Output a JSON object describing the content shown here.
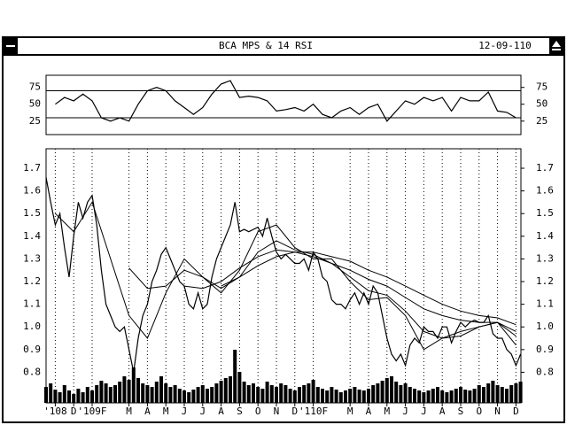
{
  "window": {
    "title": "BCA MPS & 14 RSI",
    "date": "12-09-110"
  },
  "chart_data": [
    {
      "type": "line",
      "ylim": [
        5,
        93
      ],
      "yticks": [
        25,
        50,
        75
      ],
      "levels": [
        70,
        30
      ],
      "color": "#000000",
      "xlim": [
        -0.5,
        25.27
      ],
      "x": [
        0,
        0.5,
        1,
        1.5,
        2,
        2.5,
        3,
        3.5,
        4,
        4.5,
        5,
        5.5,
        6,
        6.5,
        7,
        7.5,
        8,
        8.5,
        9,
        9.5,
        10,
        10.5,
        11,
        11.5,
        12,
        12.5,
        13,
        13.5,
        14,
        14.5,
        15,
        15.5,
        16,
        16.5,
        17,
        17.5,
        18,
        18.5,
        19,
        19.5,
        20,
        20.5,
        21,
        21.5,
        22,
        22.5,
        23,
        23.5,
        24,
        24.5,
        25
      ],
      "values": [
        50,
        60,
        55,
        65,
        55,
        30,
        25,
        30,
        25,
        50,
        70,
        75,
        70,
        55,
        45,
        35,
        45,
        65,
        80,
        85,
        60,
        62,
        60,
        55,
        40,
        42,
        45,
        40,
        50,
        35,
        30,
        40,
        45,
        35,
        45,
        50,
        25,
        40,
        55,
        50,
        60,
        55,
        60,
        40,
        60,
        55,
        55,
        68,
        40,
        38,
        30
      ]
    },
    {
      "type": "line",
      "ylim": [
        0.665,
        1.786
      ],
      "xlim": [
        -0.5,
        25.27
      ],
      "color": "#000000",
      "yticks": [
        1.7,
        1.6,
        1.5,
        1.4,
        1.3,
        1.2,
        1.1,
        {
          "value": 1,
          "label": "1.0"
        },
        0.9,
        0.8
      ],
      "xticks": [
        {
          "value": 0,
          "label": "'108"
        },
        {
          "value": 1,
          "label": "D"
        },
        {
          "value": 2,
          "label": "'109F"
        },
        {
          "value": 4,
          "label": "M"
        },
        {
          "value": 5,
          "label": "A"
        },
        {
          "value": 6,
          "label": "M"
        },
        {
          "value": 7,
          "label": "J"
        },
        {
          "value": 8,
          "label": "J"
        },
        {
          "value": 9,
          "label": "A"
        },
        {
          "value": 10,
          "label": "S"
        },
        {
          "value": 11,
          "label": "O"
        },
        {
          "value": 12,
          "label": "N"
        },
        {
          "value": 13,
          "label": "D"
        },
        {
          "value": 14,
          "label": "'110F"
        },
        {
          "value": 16,
          "label": "M"
        },
        {
          "value": 17,
          "label": "A"
        },
        {
          "value": 18,
          "label": "M"
        },
        {
          "value": 19,
          "label": "J"
        },
        {
          "value": 20,
          "label": "J"
        },
        {
          "value": 21,
          "label": "A"
        },
        {
          "value": 22,
          "label": "S"
        },
        {
          "value": 23,
          "label": "O"
        },
        {
          "value": 24,
          "label": "N"
        },
        {
          "value": 25,
          "label": "D"
        }
      ],
      "grid": true,
      "x": [
        -0.5,
        -0.25,
        0,
        0.25,
        0.5,
        0.75,
        1,
        1.25,
        1.5,
        1.75,
        2,
        2.25,
        2.5,
        2.75,
        3,
        3.25,
        3.5,
        3.75,
        4,
        4.25,
        4.5,
        4.75,
        5,
        5.25,
        5.5,
        5.75,
        6,
        6.25,
        6.5,
        6.75,
        7,
        7.25,
        7.5,
        7.75,
        8,
        8.25,
        8.5,
        8.75,
        9,
        9.25,
        9.5,
        9.75,
        10,
        10.25,
        10.5,
        10.75,
        11,
        11.25,
        11.5,
        11.75,
        12,
        12.25,
        12.5,
        12.75,
        13,
        13.25,
        13.5,
        13.75,
        14,
        14.25,
        14.5,
        14.75,
        15,
        15.25,
        15.5,
        15.75,
        16,
        16.25,
        16.5,
        16.75,
        17,
        17.25,
        17.5,
        17.75,
        18,
        18.25,
        18.5,
        18.75,
        19,
        19.25,
        19.5,
        19.75,
        20,
        20.25,
        20.5,
        20.75,
        21,
        21.25,
        21.5,
        21.75,
        22,
        22.25,
        22.5,
        22.75,
        23,
        23.25,
        23.5,
        23.75,
        24,
        24.25,
        24.5,
        24.75,
        25,
        25.25
      ],
      "values": [
        1.66,
        1.55,
        1.45,
        1.5,
        1.35,
        1.22,
        1.4,
        1.55,
        1.48,
        1.55,
        1.58,
        1.45,
        1.25,
        1.1,
        1.05,
        1.0,
        0.98,
        1.0,
        0.9,
        0.8,
        0.95,
        1.05,
        1.1,
        1.2,
        1.25,
        1.32,
        1.35,
        1.3,
        1.25,
        1.2,
        1.18,
        1.1,
        1.08,
        1.15,
        1.08,
        1.1,
        1.22,
        1.3,
        1.35,
        1.4,
        1.45,
        1.55,
        1.42,
        1.43,
        1.42,
        1.43,
        1.44,
        1.4,
        1.48,
        1.4,
        1.33,
        1.3,
        1.32,
        1.3,
        1.28,
        1.28,
        1.3,
        1.25,
        1.33,
        1.3,
        1.22,
        1.2,
        1.12,
        1.1,
        1.1,
        1.08,
        1.12,
        1.15,
        1.1,
        1.15,
        1.1,
        1.18,
        1.15,
        1.05,
        0.95,
        0.88,
        0.85,
        0.88,
        0.83,
        0.92,
        0.95,
        0.93,
        1.0,
        0.98,
        0.98,
        0.95,
        1.0,
        1.0,
        0.93,
        0.98,
        1.02,
        1.0,
        1.02,
        1.03,
        1.02,
        1.02,
        1.05,
        0.97,
        0.95,
        0.95,
        0.9,
        0.88,
        0.83,
        0.88
      ],
      "averages_x": [
        0,
        1,
        2,
        3,
        4,
        5,
        6,
        7,
        8,
        9,
        10,
        11,
        12,
        13,
        14,
        15,
        16,
        17,
        18,
        19,
        20,
        21,
        22,
        23,
        24,
        25
      ],
      "averages": [
        {
          "color": "#000000",
          "values": [
            1.5,
            1.42,
            1.55,
            1.3,
            1.05,
            0.95,
            1.15,
            1.3,
            1.22,
            1.15,
            1.25,
            1.42,
            1.45,
            1.35,
            1.3,
            1.3,
            1.2,
            1.12,
            1.13,
            1.05,
            0.9,
            0.95,
            0.98,
            1.0,
            1.02,
            0.92
          ]
        },
        {
          "color": "#000000",
          "values": [
            null,
            null,
            null,
            null,
            1.26,
            1.17,
            1.18,
            1.25,
            1.22,
            1.17,
            1.22,
            1.33,
            1.38,
            1.34,
            1.32,
            1.28,
            1.22,
            1.16,
            1.14,
            1.07,
            0.98,
            0.95,
            0.96,
            1.0,
            1.02,
            0.96
          ]
        },
        {
          "color": "#000000",
          "values": [
            null,
            null,
            null,
            null,
            null,
            null,
            null,
            1.18,
            1.17,
            1.2,
            1.26,
            1.31,
            1.34,
            1.33,
            1.31,
            1.28,
            1.25,
            1.21,
            1.18,
            1.13,
            1.08,
            1.05,
            1.03,
            1.02,
            1.02,
            0.98
          ]
        },
        {
          "color": "#000000",
          "values": [
            null,
            null,
            null,
            null,
            null,
            null,
            null,
            null,
            null,
            1.18,
            1.22,
            1.27,
            1.31,
            1.33,
            1.33,
            1.31,
            1.29,
            1.25,
            1.22,
            1.18,
            1.14,
            1.1,
            1.07,
            1.05,
            1.04,
            1.01
          ]
        }
      ],
      "volume": {
        "ylim": [
          0,
          100
        ],
        "color": "#000000",
        "values": [
          18,
          22,
          15,
          12,
          20,
          14,
          10,
          16,
          12,
          18,
          14,
          20,
          25,
          22,
          18,
          20,
          24,
          30,
          26,
          40,
          28,
          22,
          20,
          18,
          24,
          30,
          22,
          18,
          20,
          16,
          14,
          12,
          15,
          18,
          20,
          16,
          18,
          22,
          25,
          28,
          30,
          60,
          35,
          24,
          20,
          22,
          18,
          16,
          24,
          20,
          18,
          22,
          20,
          16,
          14,
          18,
          20,
          22,
          26,
          18,
          16,
          14,
          18,
          15,
          12,
          14,
          16,
          18,
          15,
          14,
          16,
          20,
          22,
          25,
          28,
          30,
          24,
          20,
          22,
          18,
          16,
          14,
          12,
          14,
          16,
          18,
          14,
          12,
          14,
          16,
          18,
          15,
          14,
          16,
          20,
          18,
          22,
          25,
          20,
          18,
          16,
          20,
          22,
          24
        ]
      }
    }
  ]
}
